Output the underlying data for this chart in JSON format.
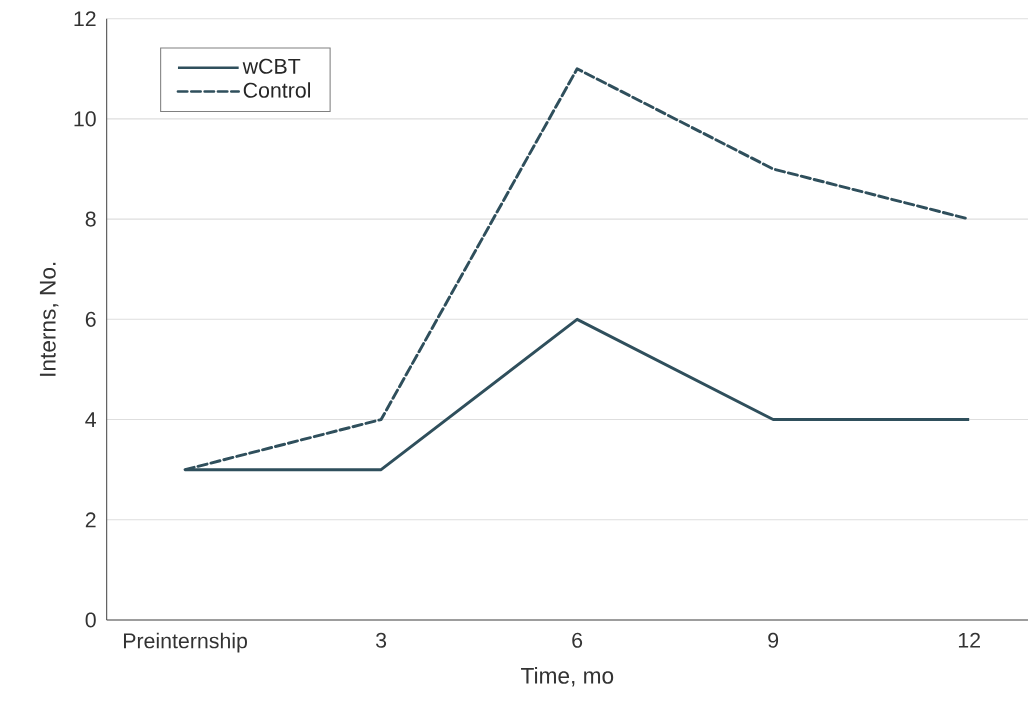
{
  "chart_data": {
    "type": "line",
    "xlabel": "Time, mo",
    "ylabel": "Interns, No.",
    "categories": [
      "Preinternship",
      "3",
      "6",
      "9",
      "12"
    ],
    "series": [
      {
        "name": "wCBT",
        "color": "#2f4f5c",
        "values": [
          3,
          3,
          6,
          4,
          4
        ],
        "line_style": "solid"
      },
      {
        "name": "Control",
        "color": "#2f4f5c",
        "values": [
          3,
          4,
          11,
          9,
          8
        ],
        "line_style": "dashed"
      }
    ],
    "ylim": [
      0,
      12
    ],
    "yticks": [
      0,
      2,
      4,
      6,
      8,
      10,
      12
    ],
    "grid": "y",
    "legend": "top left",
    "marker": "none"
  }
}
